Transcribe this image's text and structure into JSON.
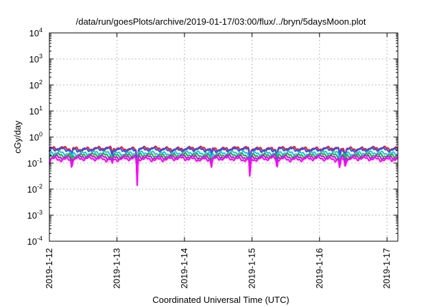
{
  "chart_data": {
    "type": "line",
    "title": "/data/run/goesPlots/archive/2019-01-17/03:00/flux/../bryn/5daysMoon.plot",
    "xlabel": "Coordinated Universal Time (UTC)",
    "ylabel": "cGy/day",
    "yscale": "log",
    "ylim": [
      0.0001,
      10000
    ],
    "xlim": [
      0,
      5.16
    ],
    "x_tick_labels": [
      "2019-1-12",
      "2019-1-13",
      "2019-1-14",
      "2019-1-15",
      "2019-1-16",
      "2019-1-17"
    ],
    "x_tick_values": [
      0,
      1,
      2,
      3,
      4,
      5
    ],
    "y_tick_labels": [
      {
        "base": "10",
        "exp": "-4",
        "value": 0.0001
      },
      {
        "base": "10",
        "exp": "-3",
        "value": 0.001
      },
      {
        "base": "10",
        "exp": "-2",
        "value": 0.01
      },
      {
        "base": "10",
        "exp": "-1",
        "value": 0.1
      },
      {
        "base": "10",
        "exp": "0",
        "value": 1
      },
      {
        "base": "10",
        "exp": "1",
        "value": 10
      },
      {
        "base": "10",
        "exp": "2",
        "value": 100
      },
      {
        "base": "10",
        "exp": "3",
        "value": 1000
      },
      {
        "base": "10",
        "exp": "4",
        "value": 10000
      }
    ],
    "grid": true,
    "legend": "none",
    "series": [
      {
        "color": "#e8202a",
        "level": 0.36
      },
      {
        "color": "#3a4ee8",
        "level": 0.33
      },
      {
        "color": "#21c8e0",
        "level": 0.24
      },
      {
        "color": "#2fa84a",
        "level": 0.2
      },
      {
        "color": "#9b30c0",
        "level": 0.17
      },
      {
        "color": "#ff00ff",
        "level": 0.145
      }
    ],
    "dips": [
      {
        "x": 0.0,
        "factor": 0.75
      },
      {
        "x": 0.33,
        "factor": 0.55
      },
      {
        "x": 0.93,
        "factor": 0.6
      },
      {
        "x": 1.3,
        "factor": 0.09
      },
      {
        "x": 2.4,
        "factor": 0.55
      },
      {
        "x": 2.97,
        "factor": 0.16
      },
      {
        "x": 3.37,
        "factor": 0.45
      },
      {
        "x": 4.3,
        "factor": 0.45
      },
      {
        "x": 4.38,
        "factor": 0.5
      }
    ]
  }
}
